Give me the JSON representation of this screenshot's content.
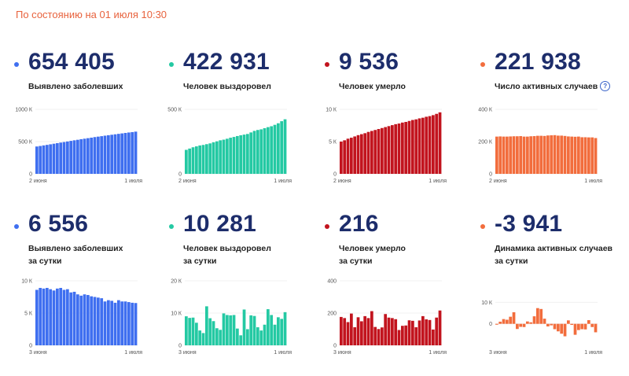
{
  "as_of": "По состоянию на 01 июля 10:30",
  "stats": [
    {
      "value": "654 405",
      "label": "Выявлено заболевших",
      "color": "#3f6ff0"
    },
    {
      "value": "422 931",
      "label": "Человек выздоровел",
      "color": "#24c9a3"
    },
    {
      "value": "9 536",
      "label": "Человек умерло",
      "color": "#c2141e"
    },
    {
      "value": "221 938",
      "label": "Число активных случаев",
      "color": "#f26d3d",
      "help": "?"
    },
    {
      "value": "6 556",
      "label": "Выявлено заболевших",
      "label2": "за сутки",
      "color": "#3f6ff0"
    },
    {
      "value": "10 281",
      "label": "Человек выздоровел",
      "label2": "за сутки",
      "color": "#24c9a3"
    },
    {
      "value": "216",
      "label": "Человек умерло",
      "label2": "за сутки",
      "color": "#c2141e"
    },
    {
      "value": "-3 941",
      "label": "Динамика активных случаев",
      "label2": "за сутки",
      "color": "#f26d3d"
    }
  ],
  "chart_data": [
    {
      "type": "bar",
      "color": "#3f6ff0",
      "yticks": [
        "1000 К",
        "500 К",
        "0"
      ],
      "ylim": [
        0,
        1000000
      ],
      "xlabels": [
        "2 июня",
        "1 июля"
      ],
      "values": [
        424000,
        432000,
        441000,
        449000,
        458000,
        467000,
        476000,
        485000,
        493000,
        502000,
        511000,
        520000,
        528000,
        537000,
        545000,
        553000,
        561000,
        570000,
        577000,
        584000,
        592000,
        599000,
        606000,
        613000,
        620000,
        627000,
        634000,
        641000,
        647000,
        654405
      ]
    },
    {
      "type": "bar",
      "color": "#24c9a3",
      "yticks": [
        "500 К",
        "0"
      ],
      "ylim": [
        0,
        500000
      ],
      "xlabels": [
        "2 июня",
        "1 июля"
      ],
      "values": [
        186000,
        196000,
        206000,
        213000,
        220000,
        224000,
        230000,
        236000,
        245000,
        252000,
        260000,
        265000,
        272000,
        280000,
        286000,
        293000,
        299000,
        304000,
        309000,
        321000,
        333000,
        340000,
        345000,
        354000,
        362000,
        369000,
        380000,
        392000,
        408000,
        422931
      ]
    },
    {
      "type": "bar",
      "color": "#c2141e",
      "yticks": [
        "10 К",
        "5 К",
        "0"
      ],
      "ylim": [
        0,
        10000
      ],
      "xlabels": [
        "2 июня",
        "1 июля"
      ],
      "values": [
        5000,
        5200,
        5450,
        5600,
        5800,
        6000,
        6150,
        6300,
        6500,
        6650,
        6800,
        6950,
        7100,
        7250,
        7400,
        7550,
        7700,
        7800,
        7950,
        8050,
        8200,
        8350,
        8450,
        8600,
        8700,
        8850,
        8950,
        9100,
        9300,
        9536
      ]
    },
    {
      "type": "bar",
      "color": "#f26d3d",
      "yticks": [
        "400 К",
        "200 К",
        "0"
      ],
      "ylim": [
        0,
        400000
      ],
      "xlabels": [
        "2 июня",
        "1 июля"
      ],
      "values": [
        231000,
        232000,
        231000,
        231000,
        232000,
        233000,
        233000,
        234000,
        231000,
        231000,
        233000,
        234000,
        236000,
        236000,
        235000,
        238000,
        239000,
        240000,
        237000,
        237000,
        235000,
        232000,
        231000,
        230000,
        231000,
        227000,
        227000,
        226000,
        226000,
        221938
      ]
    },
    {
      "type": "bar",
      "color": "#3f6ff0",
      "yticks": [
        "10 К",
        "5 К",
        "0"
      ],
      "ylim": [
        0,
        10000
      ],
      "xlabels": [
        "3 июня",
        "1 июля"
      ],
      "values": [
        8600,
        8900,
        8800,
        8900,
        8700,
        8500,
        8800,
        8900,
        8600,
        8700,
        8200,
        8300,
        7900,
        7700,
        7900,
        7800,
        7600,
        7500,
        7400,
        7300,
        6800,
        7000,
        6900,
        6600,
        7000,
        6800,
        6800,
        6700,
        6600,
        6556
      ]
    },
    {
      "type": "bar",
      "color": "#24c9a3",
      "yticks": [
        "20 К",
        "10 К",
        "0"
      ],
      "ylim": [
        0,
        20000
      ],
      "xlabels": [
        "3 июня",
        "1 июля"
      ],
      "values": [
        9000,
        8500,
        8600,
        7000,
        4600,
        3800,
        12100,
        8400,
        7500,
        5300,
        4800,
        9900,
        9400,
        9300,
        9400,
        5200,
        3100,
        11100,
        5000,
        9300,
        9100,
        5600,
        4600,
        6400,
        11200,
        9400,
        6400,
        8700,
        8200,
        10281
      ]
    },
    {
      "type": "bar",
      "color": "#c2141e",
      "yticks": [
        "400",
        "200",
        "0"
      ],
      "ylim": [
        0,
        400
      ],
      "xlabels": [
        "3 июня",
        "1 июля"
      ],
      "values": [
        176,
        169,
        144,
        197,
        112,
        174,
        149,
        181,
        169,
        212,
        114,
        101,
        111,
        194,
        172,
        169,
        162,
        95,
        121,
        123,
        155,
        152,
        112,
        154,
        181,
        161,
        157,
        98,
        172,
        216
      ]
    },
    {
      "type": "bar",
      "color": "#f26d3d",
      "yticks": [
        "10 К",
        "0"
      ],
      "ylim": [
        -10000,
        20000
      ],
      "xlabels": [
        "3 июня",
        "1 июля"
      ],
      "values": [
        -400,
        1000,
        2200,
        1900,
        3300,
        5400,
        -2400,
        -1400,
        -1500,
        1100,
        700,
        3500,
        7300,
        6900,
        2400,
        -1200,
        -700,
        -2500,
        -3500,
        -4600,
        -5800,
        1600,
        -500,
        -5100,
        -2900,
        -2500,
        -2600,
        1700,
        -1500,
        -3941
      ]
    }
  ]
}
